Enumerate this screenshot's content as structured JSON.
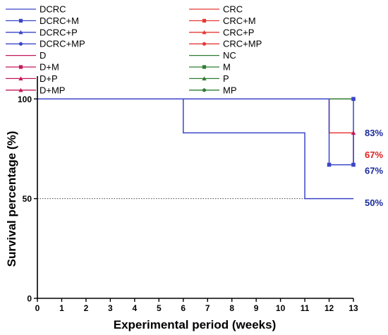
{
  "chart_data": {
    "type": "line",
    "step": true,
    "xlabel": "Experimental period (weeks)",
    "ylabel": "Survival percentage (%)",
    "xlim": [
      0,
      13
    ],
    "ylim": [
      0,
      110
    ],
    "x_ticks": [
      "0",
      "1",
      "2",
      "3",
      "4",
      "5",
      "6",
      "7",
      "8",
      "9",
      "10",
      "11",
      "12",
      "13"
    ],
    "y_ticks": [
      "0",
      "50",
      "100"
    ],
    "reference_line": {
      "y": 50,
      "style": "dotted"
    },
    "legend": {
      "placement": "top-left",
      "columns": [
        [
          {
            "label": "DCRC",
            "color": "#3a45c8",
            "marker": "none"
          },
          {
            "label": "DCRC+M",
            "color": "#3a45c8",
            "marker": "square"
          },
          {
            "label": "DCRC+P",
            "color": "#3a45c8",
            "marker": "triangle"
          },
          {
            "label": "DCRC+MP",
            "color": "#3a45c8",
            "marker": "circle"
          },
          {
            "label": "D",
            "color": "#c2185b",
            "marker": "none"
          },
          {
            "label": "D+M",
            "color": "#c2185b",
            "marker": "square"
          },
          {
            "label": "D+P",
            "color": "#c2185b",
            "marker": "triangle"
          },
          {
            "label": "D+MP",
            "color": "#c2185b",
            "marker": "triangle"
          }
        ],
        [
          {
            "label": "CRC",
            "color": "#e53935",
            "marker": "none"
          },
          {
            "label": "CRC+M",
            "color": "#e53935",
            "marker": "square"
          },
          {
            "label": "CRC+P",
            "color": "#e53935",
            "marker": "triangle"
          },
          {
            "label": "CRC+MP",
            "color": "#e53935",
            "marker": "circle"
          },
          {
            "label": "NC",
            "color": "#2e7d32",
            "marker": "none"
          },
          {
            "label": "M",
            "color": "#2e7d32",
            "marker": "square"
          },
          {
            "label": "P",
            "color": "#2e7d32",
            "marker": "triangle"
          },
          {
            "label": "MP",
            "color": "#2e7d32",
            "marker": "circle"
          }
        ]
      ]
    },
    "series": [
      {
        "name": "D",
        "color": "#c2185b",
        "points": [
          [
            0,
            100
          ],
          [
            13,
            100
          ]
        ]
      },
      {
        "name": "NC",
        "color": "#2e7d32",
        "points": [
          [
            0,
            100
          ],
          [
            13,
            100
          ]
        ]
      },
      {
        "name": "CRC+M",
        "color": "#e53935",
        "points": [
          [
            0,
            100
          ],
          [
            12,
            100
          ],
          [
            12,
            83
          ],
          [
            13,
            83
          ],
          [
            13,
            67
          ]
        ]
      },
      {
        "name": "DCRC+M",
        "color": "#3a45c8",
        "points": [
          [
            0,
            100
          ],
          [
            12,
            100
          ],
          [
            12,
            67
          ],
          [
            13,
            67
          ],
          [
            13,
            100
          ]
        ]
      },
      {
        "name": "DCRC",
        "color": "#3a45c8",
        "points": [
          [
            0,
            100
          ],
          [
            6,
            100
          ],
          [
            6,
            83
          ],
          [
            11,
            83
          ],
          [
            11,
            50
          ],
          [
            13,
            50
          ]
        ]
      }
    ],
    "markers": [
      {
        "x": 12,
        "y": 67,
        "color": "#3a45c8",
        "shape": "square"
      },
      {
        "x": 13,
        "y": 67,
        "color": "#3a45c8",
        "shape": "square"
      },
      {
        "x": 13,
        "y": 100,
        "color": "#3a45c8",
        "shape": "square"
      },
      {
        "x": 13,
        "y": 83,
        "color": "#c2185b",
        "shape": "triangle"
      }
    ],
    "end_labels": [
      {
        "text": "83%",
        "y": 83,
        "color": "#1a2a9c"
      },
      {
        "text": "67%",
        "y": 72,
        "color": "#e02020"
      },
      {
        "text": "67%",
        "y": 64,
        "color": "#1a2a9c"
      },
      {
        "text": "50%",
        "y": 48,
        "color": "#1a2a9c"
      }
    ]
  }
}
